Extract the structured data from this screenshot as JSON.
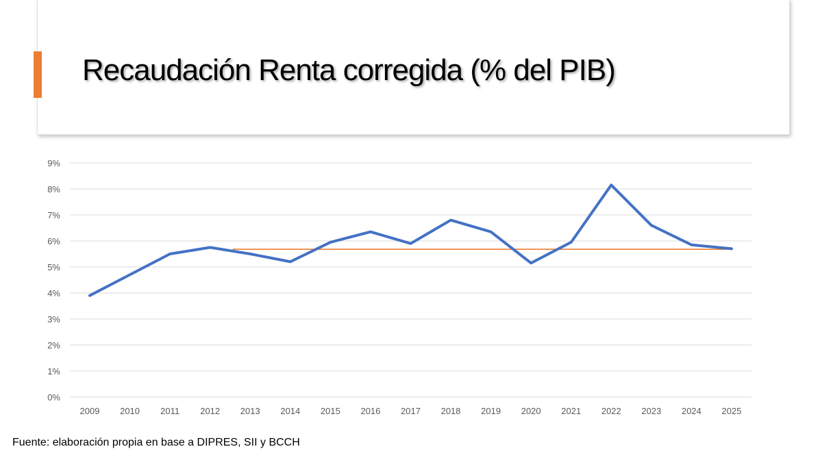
{
  "slide": {
    "title": "Recaudación Renta corregida (% del PIB)",
    "source": "Fuente: elaboración propia en base a DIPRES, SII y BCCH"
  },
  "colors": {
    "accent": "#ED7D31",
    "series_line": "#4472C4",
    "reference_line": "#ED7D31",
    "gridline": "#d9d9d9",
    "tick_text": "#595959"
  },
  "chart_data": {
    "type": "line",
    "title": "",
    "xlabel": "",
    "ylabel": "",
    "ylim": [
      0,
      9
    ],
    "grid": true,
    "y_ticks": [
      "0%",
      "1%",
      "2%",
      "3%",
      "4%",
      "5%",
      "6%",
      "7%",
      "8%",
      "9%"
    ],
    "categories": [
      "2009",
      "2010",
      "2011",
      "2012",
      "2013",
      "2014",
      "2015",
      "2016",
      "2017",
      "2018",
      "2019",
      "2020",
      "2021",
      "2022",
      "2023",
      "2024",
      "2025"
    ],
    "series": [
      {
        "values": [
          3.9,
          4.7,
          5.5,
          5.75,
          5.5,
          5.2,
          5.95,
          6.35,
          5.9,
          6.8,
          6.35,
          5.15,
          5.95,
          8.15,
          6.6,
          5.85,
          5.7
        ]
      },
      {
        "values": [
          null,
          null,
          null,
          null,
          5.68,
          5.68,
          5.68,
          5.68,
          5.68,
          5.68,
          5.68,
          5.68,
          5.68,
          5.68,
          5.68,
          5.68,
          5.68
        ]
      }
    ]
  }
}
